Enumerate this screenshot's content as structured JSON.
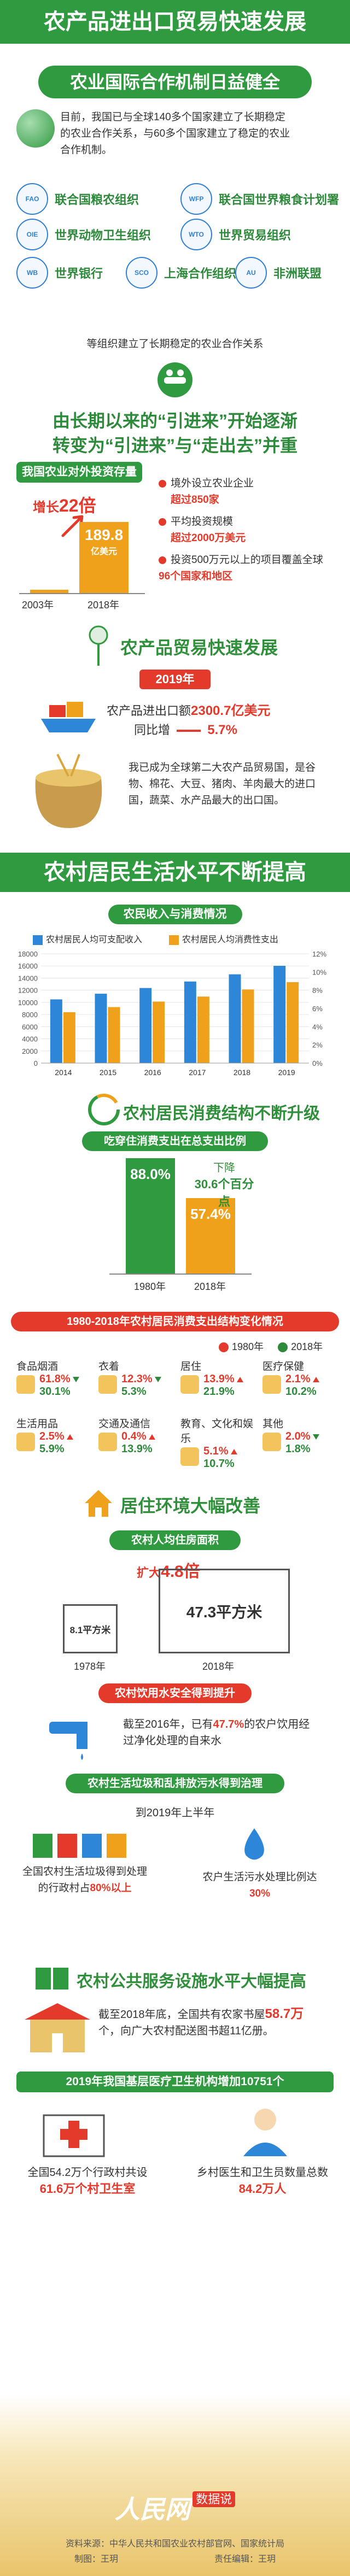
{
  "header": {
    "title": "农产品进出口贸易快速发展"
  },
  "coop": {
    "title": "农业国际合作机制日益健全",
    "text": "目前，我国已与全球140多个国家建立了长期稳定的农业合作关系，与60多个国家建立了稳定的农业合作机制。",
    "orgs": [
      {
        "name": "联合国粮农组织",
        "logo": "FAO"
      },
      {
        "name": "联合国世界粮食计划署",
        "logo": "WFP"
      },
      {
        "name": "世界动物卫生组织",
        "logo": "OIE"
      },
      {
        "name": "世界贸易组织",
        "logo": "WTO"
      },
      {
        "name": "世界银行",
        "logo": "WB"
      },
      {
        "name": "上海合作组织",
        "logo": "SCO"
      },
      {
        "name": "非洲联盟",
        "logo": "AU"
      }
    ],
    "footnote": "等组织建立了长期稳定的农业合作关系"
  },
  "transition": {
    "line1": "由长期以来的“引进来”开始逐渐",
    "line2": "转变为“引进来”与“走出去”并重"
  },
  "investment": {
    "label": "我国农业对外投资存量",
    "growth_prefix": "增长",
    "growth_value": "22倍",
    "year_a": "2003年",
    "year_b": "2018年",
    "value_b": "189.8",
    "unit_b": "亿美元",
    "ratio_2003_to_2018": 0.05,
    "bullets": [
      {
        "pre": "境外设立农业企业",
        "hl": "超过850家"
      },
      {
        "pre": "平均投资规模",
        "hl": "超过2000万美元"
      },
      {
        "pre": "投资500万元以上的项目覆盖全球",
        "hl": "96个国家和地区",
        "post": ""
      }
    ]
  },
  "trade": {
    "title": "农产品贸易快速发展",
    "year": "2019年",
    "l1_pre": "农产品进出口额",
    "l1_val": "2300.7亿美元",
    "l2_pre": "同比增",
    "l2_val": "5.7%",
    "text": "我已成为全球第二大农产品贸易国，是谷物、棉花、大豆、猪肉、羊肉最大的进口国，蔬菜、水产品最大的出口国。"
  },
  "living": {
    "ribbon": "农村居民生活水平不断提高",
    "income_title": "农民收入与消费情况",
    "legend_income": "农村居民人均可支配收入",
    "legend_consume": "农村居民人均消费性支出"
  },
  "chart_data": {
    "type": "bar",
    "title": "农民收入与消费情况",
    "categories": [
      "2014",
      "2015",
      "2016",
      "2017",
      "2018",
      "2019"
    ],
    "series": [
      {
        "name": "农村居民人均可支配收入",
        "values": [
          10489,
          11422,
          12363,
          13432,
          14617,
          16021
        ],
        "color": "#2e86d9"
      },
      {
        "name": "农村居民人均消费性支出",
        "values": [
          8383,
          9223,
          10130,
          10955,
          12124,
          13328
        ],
        "color": "#f0a11b"
      }
    ],
    "ylim_left": [
      0,
      18000
    ],
    "yticks_left": [
      "0",
      "2000",
      "4000",
      "6000",
      "8000",
      "10000",
      "12000",
      "14000",
      "16000",
      "18000"
    ],
    "yticks_right": [
      "0%",
      "2%",
      "4%",
      "6%",
      "8%",
      "10%",
      "12%"
    ],
    "legend": "top"
  },
  "structure": {
    "title": "农村居民消费结构不断升级",
    "subtitle": "吃穿住消费支出在总支出比例",
    "v1980": "88.0%",
    "v2018": "57.4%",
    "drop_label": "下降",
    "drop_value": "30.6个百分点",
    "y1980": "1980年",
    "y2018": "2018年",
    "ratio_1980": 0.88,
    "ratio_2018": 0.574
  },
  "change": {
    "title": "1980-2018年农村居民消费支出结构变化情况",
    "legend_1980": "1980年",
    "legend_2018": "2018年",
    "items": [
      {
        "name": "食品烟酒",
        "a": "61.8%",
        "b": "30.1%",
        "dir": "down",
        "icon": "food-icon"
      },
      {
        "name": "衣着",
        "a": "12.3%",
        "b": "5.3%",
        "dir": "down",
        "icon": "clothes-icon"
      },
      {
        "name": "居住",
        "a": "13.9%",
        "b": "21.9%",
        "dir": "up",
        "icon": "house-icon"
      },
      {
        "name": "医疗保健",
        "a": "2.1%",
        "b": "10.2%",
        "dir": "up",
        "icon": "medical-icon"
      },
      {
        "name": "生活用品",
        "a": "2.5%",
        "b": "5.9%",
        "dir": "up",
        "icon": "goods-icon"
      },
      {
        "name": "交通及通信",
        "a": "0.4%",
        "b": "13.9%",
        "dir": "up",
        "icon": "transport-icon"
      },
      {
        "name": "教育、文化和娱乐",
        "a": "5.1%",
        "b": "10.7%",
        "dir": "up",
        "icon": "education-icon"
      },
      {
        "name": "其他",
        "a": "2.0%",
        "b": "1.8%",
        "dir": "down",
        "icon": "other-icon"
      }
    ]
  },
  "env": {
    "title": "居住环境大幅改善",
    "area_title": "农村人均住房面积",
    "expand_label": "扩大",
    "expand_value": "4.8倍",
    "a1978": "8.1平方米",
    "a2018": "47.3平方米",
    "y1978": "1978年",
    "y2018": "2018年",
    "water_title": "农村饮用水安全得到提升",
    "water_text_pre": "截至2016年，已有",
    "water_hl": "47.7%",
    "water_text_post": "的农户饮用经过净化处理的自来水",
    "waste_title": "农村生活垃圾和乱排放污水得到治理",
    "waste_sub": "到2019年上半年",
    "waste_left_pre": "全国农村生活垃圾得到处理的行政村占",
    "waste_left_hl": "80%以上",
    "waste_right_pre": "农户生活污水处理比例达",
    "waste_right_hl": "30%"
  },
  "public": {
    "title": "农村公共服务设施水平大幅提高",
    "lib_pre": "截至2018年底，全国共有农家书屋",
    "lib_hl": "58.7万",
    "lib_post": "个，向广大农村配送图书超11亿册。",
    "med_band": "2019年我国基层医疗卫生机构增加10751个",
    "left_pre": "全国54.2万个行政村共设",
    "left_hl": "61.6万个村卫生室",
    "right_pre": "乡村医生和卫生员数量总数",
    "right_hl": "84.2万人"
  },
  "footer": {
    "logo": "人民网",
    "logo_sub": "数据说",
    "source": "资料来源：中华人民共和国农业农村部官网、国家统计局",
    "producer": "制图：王玥　　　　　　　　　　　责任编辑：王玥"
  },
  "colors": {
    "green": "#2f9a3f",
    "red": "#e43a2c",
    "orange": "#f0a11b",
    "blue": "#2e86d9"
  }
}
